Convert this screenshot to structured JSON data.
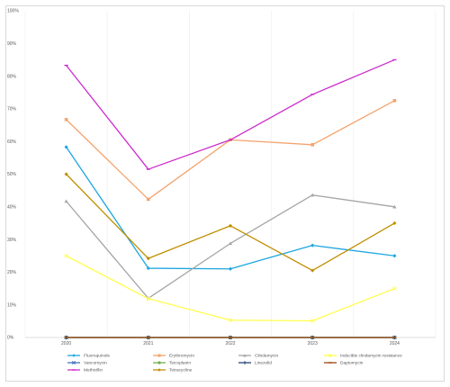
{
  "chart_data": {
    "type": "line",
    "x": [
      "2020",
      "2021",
      "2022",
      "2023",
      "2024"
    ],
    "ylim": [
      0,
      100
    ],
    "yticks": [
      0,
      10,
      20,
      30,
      40,
      50,
      60,
      70,
      80,
      90,
      100
    ],
    "ytick_labels": [
      "0%",
      "10%",
      "20%",
      "30%",
      "40%",
      "50%",
      "60%",
      "70%",
      "80%",
      "90%",
      "100%"
    ],
    "grid": "vertical-lines",
    "legend_position": "bottom",
    "series": [
      {
        "name": "Fluoroquinole",
        "color": "#1ea6e0",
        "marker": "diamond",
        "values": [
          58.3,
          21.2,
          21.0,
          28.2,
          25.0
        ]
      },
      {
        "name": "Erythromycin",
        "color": "#f4a36d",
        "marker": "square",
        "values": [
          66.7,
          42.3,
          60.5,
          59.0,
          72.5
        ]
      },
      {
        "name": "Clindamycin",
        "color": "#a5a5a5",
        "marker": "triangle",
        "values": [
          41.7,
          12.0,
          28.8,
          43.6,
          40.0
        ]
      },
      {
        "name": "Inducible clindamycin resistance",
        "color": "#ffff4d",
        "marker": "x",
        "values": [
          25.0,
          11.9,
          5.3,
          5.1,
          15.0
        ]
      },
      {
        "name": "Vancomycin",
        "color": "#4472c4",
        "marker": "x",
        "values": [
          0,
          0,
          0,
          0,
          0
        ]
      },
      {
        "name": "Teicoplanin",
        "color": "#70ad47",
        "marker": "circle",
        "values": [
          0,
          0,
          0,
          0,
          0
        ]
      },
      {
        "name": "Linezolid",
        "color": "#264478",
        "marker": "plus",
        "values": [
          0,
          0,
          0,
          0,
          0
        ]
      },
      {
        "name": "Daptomycin",
        "color": "#9e480e",
        "marker": "dash",
        "values": [
          0,
          0,
          0,
          0,
          0
        ]
      },
      {
        "name": "Methicillin",
        "color": "#cc2ccc",
        "marker": "dash",
        "values": [
          83.3,
          51.5,
          60.5,
          74.4,
          85.0
        ]
      },
      {
        "name": "Tetracycline",
        "color": "#bf8f00",
        "marker": "diamond",
        "values": [
          50.0,
          24.2,
          34.2,
          20.5,
          35.0
        ]
      }
    ]
  }
}
